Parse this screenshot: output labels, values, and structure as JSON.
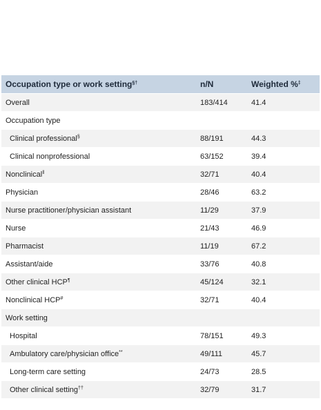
{
  "table": {
    "header": [
      {
        "label": "Occupation type or work setting",
        "note": "§†"
      },
      {
        "label": "n/N"
      },
      {
        "label": "Weighted %",
        "note": "‡"
      }
    ],
    "rows": [
      {
        "label": "Overall",
        "n": "183/414",
        "pct": 41.4,
        "indent": false
      },
      {
        "label": "Occupation type",
        "indent": false
      },
      {
        "label": "Clinical professional",
        "note": "§",
        "n": "88/191",
        "pct": 44.3,
        "indent": true
      },
      {
        "label": "Clinical nonprofessional",
        "n": "63/152",
        "pct": 39.4,
        "indent": true
      },
      {
        "label": "Nonclinical",
        "note": "‖",
        "n": "32/71",
        "pct": 40.4,
        "indent": false
      },
      {
        "label": "Physician",
        "n": "28/46",
        "pct": 63.2,
        "indent": false
      },
      {
        "label": "Nurse practitioner/physician assistant",
        "n": "11/29",
        "pct": 37.9,
        "indent": false
      },
      {
        "label": "Nurse",
        "n": "21/43",
        "pct": 46.9,
        "indent": false
      },
      {
        "label": "Pharmacist",
        "n": "11/19",
        "pct": 67.2,
        "indent": false
      },
      {
        "label": "Assistant/aide",
        "n": "33/76",
        "pct": 40.8,
        "indent": false
      },
      {
        "label": "Other clinical HCP",
        "note": "¶",
        "n": "45/124",
        "pct": 32.1,
        "indent": false
      },
      {
        "label": "Nonclinical HCP",
        "note": "#",
        "n": "32/71",
        "pct": 40.4,
        "indent": false
      },
      {
        "label": "Work setting",
        "indent": false
      },
      {
        "label": "Hospital",
        "n": "78/151",
        "pct": 49.3,
        "indent": true
      },
      {
        "label": "Ambulatory care/physician office",
        "note": "**",
        "n": "49/111",
        "pct": 45.7,
        "indent": true
      },
      {
        "label": "Long-term care setting",
        "n": "24/73",
        "pct": 28.5,
        "indent": true
      },
      {
        "label": "Other clinical setting",
        "note": "††",
        "n": "32/79",
        "pct": 31.7,
        "indent": true
      }
    ]
  }
}
